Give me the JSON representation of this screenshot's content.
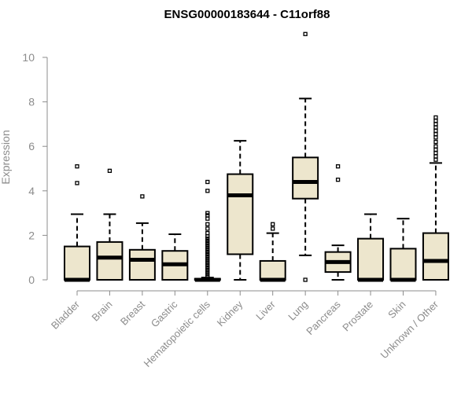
{
  "chart_data": {
    "type": "boxplot",
    "title": "ENSG00000183644 - C11orf88",
    "xlabel": "",
    "ylabel": "Expression",
    "ylim": [
      0,
      10
    ],
    "yticks": [
      0,
      2,
      4,
      6,
      8,
      10
    ],
    "categories": [
      "Bladder",
      "Brain",
      "Breast",
      "Gastric",
      "Hematopoietic cells",
      "Kidney",
      "Liver",
      "Lung",
      "Pancreas",
      "Prostate",
      "Skin",
      "Unknown / Other"
    ],
    "box_fill": "#ede6cd",
    "series": [
      {
        "category": "Bladder",
        "whisker_low": 0,
        "q1": 0,
        "median": 0,
        "q3": 1.5,
        "whisker_high": 2.95,
        "outliers": [
          4.35,
          5.1
        ]
      },
      {
        "category": "Brain",
        "whisker_low": 0,
        "q1": 0,
        "median": 1.0,
        "q3": 1.7,
        "whisker_high": 2.95,
        "outliers": [
          4.9
        ]
      },
      {
        "category": "Breast",
        "whisker_low": 0,
        "q1": 0,
        "median": 0.9,
        "q3": 1.35,
        "whisker_high": 2.55,
        "outliers": [
          3.75
        ]
      },
      {
        "category": "Gastric",
        "whisker_low": 0,
        "q1": 0,
        "median": 0.7,
        "q3": 1.3,
        "whisker_high": 2.05,
        "outliers": []
      },
      {
        "category": "Hematopoietic cells",
        "whisker_low": 0,
        "q1": 0,
        "median": 0,
        "q3": 0.05,
        "whisker_high": 0.1,
        "outliers": [
          0.15,
          0.25,
          0.35,
          0.45,
          0.55,
          0.65,
          0.75,
          0.85,
          0.95,
          1.05,
          1.15,
          1.25,
          1.35,
          1.45,
          1.55,
          1.65,
          1.75,
          1.85,
          1.95,
          2.1,
          2.3,
          2.5,
          2.75,
          2.9,
          3.0,
          4.0,
          4.4
        ]
      },
      {
        "category": "Kidney",
        "whisker_low": 0,
        "q1": 1.15,
        "median": 3.8,
        "q3": 4.75,
        "whisker_high": 6.25,
        "outliers": []
      },
      {
        "category": "Liver",
        "whisker_low": 0,
        "q1": 0,
        "median": 0,
        "q3": 0.85,
        "whisker_high": 2.1,
        "outliers": [
          2.3,
          2.5
        ]
      },
      {
        "category": "Lung",
        "whisker_low": 1.1,
        "q1": 3.65,
        "median": 4.4,
        "q3": 5.5,
        "whisker_high": 8.15,
        "outliers": [
          0,
          11.05
        ]
      },
      {
        "category": "Pancreas",
        "whisker_low": 0,
        "q1": 0.35,
        "median": 0.8,
        "q3": 1.25,
        "whisker_high": 1.55,
        "outliers": [
          4.5,
          5.1
        ]
      },
      {
        "category": "Prostate",
        "whisker_low": 0,
        "q1": 0,
        "median": 0,
        "q3": 1.85,
        "whisker_high": 2.95,
        "outliers": []
      },
      {
        "category": "Skin",
        "whisker_low": 0,
        "q1": 0,
        "median": 0,
        "q3": 1.4,
        "whisker_high": 2.75,
        "outliers": []
      },
      {
        "category": "Unknown / Other",
        "whisker_low": 0,
        "q1": 0,
        "median": 0.85,
        "q3": 2.1,
        "whisker_high": 5.25,
        "outliers": [
          5.4,
          5.55,
          5.7,
          5.85,
          6.0,
          6.2,
          6.4,
          6.55,
          6.7,
          6.85,
          7.0,
          7.15,
          7.3
        ]
      }
    ]
  }
}
